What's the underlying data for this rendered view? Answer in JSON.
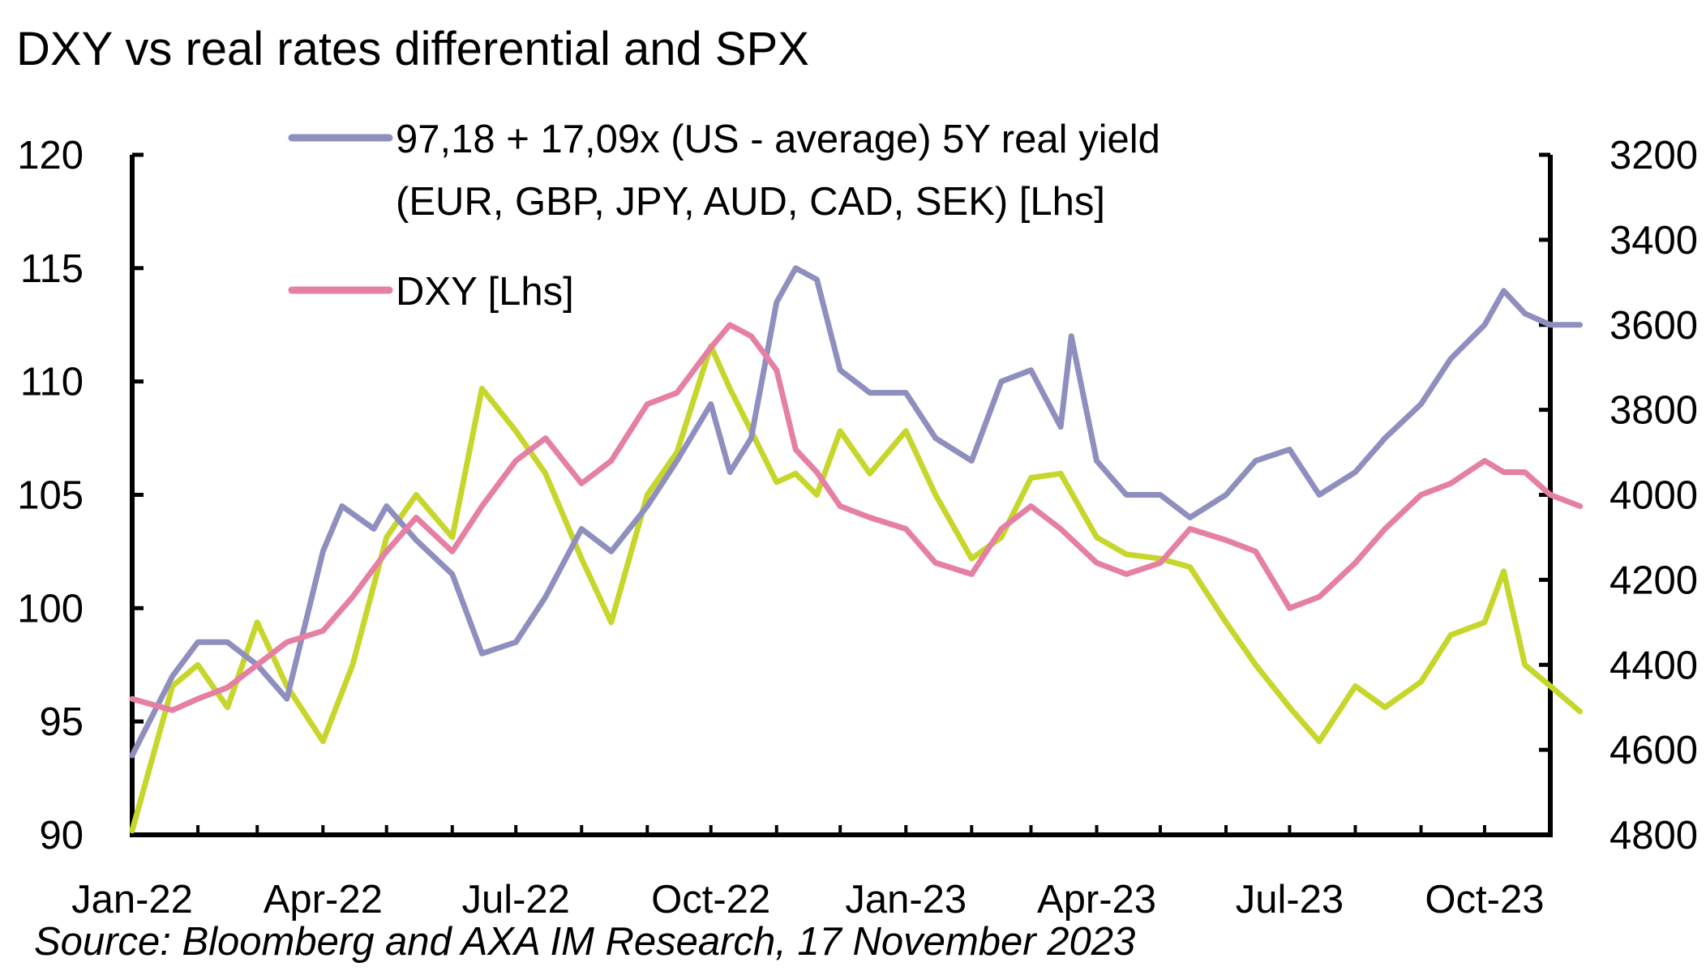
{
  "chart_data": {
    "type": "line",
    "title": "DXY vs real rates differential and SPX",
    "source": "Source: Bloomberg and AXA IM Research, 17 November 2023",
    "x_ticks": [
      "Jan-22",
      "Apr-22",
      "Jul-22",
      "Oct-22",
      "Jan-23",
      "Apr-23",
      "Jul-23",
      "Oct-23"
    ],
    "x_range": [
      "2022-01",
      "2023-11"
    ],
    "y_left": {
      "ticks": [
        "120",
        "115",
        "110",
        "105",
        "100",
        "95",
        "90"
      ],
      "min": 90,
      "max": 120
    },
    "y_right": {
      "ticks": [
        "3200",
        "3400",
        "3600",
        "3800",
        "4000",
        "4200",
        "4400",
        "4600",
        "4800"
      ],
      "min": 3200,
      "max": 4800,
      "inverted": true
    },
    "legend": [
      {
        "label_line1": "97,18 + 17,09x (US - average) 5Y real yield",
        "label_line2": "(EUR, GBP, JPY, AUD, CAD, SEK) [Lhs]",
        "color": "#8f8fbf"
      },
      {
        "label_line1": "DXY [Lhs]",
        "color": "#e57fa3"
      }
    ],
    "series": [
      {
        "name": "97,18 + 17,09x (US - average) 5Y real yield (EUR, GBP, JPY, AUD, CAD, SEK) [Lhs]",
        "axis": "left",
        "color": "#8f8fbf",
        "points": [
          [
            "2022-01",
            93.5
          ],
          [
            "2022-01-20",
            97.0
          ],
          [
            "2022-02",
            98.5
          ],
          [
            "2022-02-15",
            98.5
          ],
          [
            "2022-03",
            97.5
          ],
          [
            "2022-03-15",
            96.0
          ],
          [
            "2022-04",
            102.5
          ],
          [
            "2022-04-10",
            104.5
          ],
          [
            "2022-04-25",
            103.5
          ],
          [
            "2022-05",
            104.5
          ],
          [
            "2022-05-15",
            103.0
          ],
          [
            "2022-06",
            101.5
          ],
          [
            "2022-06-15",
            98.0
          ],
          [
            "2022-07",
            98.5
          ],
          [
            "2022-07-15",
            100.5
          ],
          [
            "2022-08",
            103.5
          ],
          [
            "2022-08-15",
            102.5
          ],
          [
            "2022-09",
            104.5
          ],
          [
            "2022-09-15",
            106.5
          ],
          [
            "2022-10",
            109.0
          ],
          [
            "2022-10-10",
            106.0
          ],
          [
            "2022-10-20",
            107.5
          ],
          [
            "2022-11",
            113.5
          ],
          [
            "2022-11-10",
            115.0
          ],
          [
            "2022-11-20",
            114.5
          ],
          [
            "2022-12",
            110.5
          ],
          [
            "2022-12-15",
            109.5
          ],
          [
            "2023-01",
            109.5
          ],
          [
            "2023-01-15",
            107.5
          ],
          [
            "2023-02",
            106.5
          ],
          [
            "2023-02-15",
            110.0
          ],
          [
            "2023-03",
            110.5
          ],
          [
            "2023-03-15",
            108.0
          ],
          [
            "2023-03-20",
            112.0
          ],
          [
            "2023-04",
            106.5
          ],
          [
            "2023-04-15",
            105.0
          ],
          [
            "2023-05",
            105.0
          ],
          [
            "2023-05-15",
            104.0
          ],
          [
            "2023-06",
            105.0
          ],
          [
            "2023-06-15",
            106.5
          ],
          [
            "2023-07",
            107.0
          ],
          [
            "2023-07-15",
            105.0
          ],
          [
            "2023-08",
            106.0
          ],
          [
            "2023-08-15",
            107.5
          ],
          [
            "2023-09",
            109.0
          ],
          [
            "2023-09-15",
            111.0
          ],
          [
            "2023-10",
            112.5
          ],
          [
            "2023-10-10",
            114.0
          ],
          [
            "2023-10-20",
            113.0
          ],
          [
            "2023-11",
            112.5
          ],
          [
            "2023-11-15",
            112.5
          ]
        ]
      },
      {
        "name": "DXY [Lhs]",
        "axis": "left",
        "color": "#e57fa3",
        "points": [
          [
            "2022-01",
            96.0
          ],
          [
            "2022-01-20",
            95.5
          ],
          [
            "2022-02",
            96.0
          ],
          [
            "2022-02-15",
            96.5
          ],
          [
            "2022-03",
            97.5
          ],
          [
            "2022-03-15",
            98.5
          ],
          [
            "2022-04",
            99.0
          ],
          [
            "2022-04-15",
            100.5
          ],
          [
            "2022-05",
            102.5
          ],
          [
            "2022-05-15",
            104.0
          ],
          [
            "2022-06",
            102.5
          ],
          [
            "2022-06-15",
            104.5
          ],
          [
            "2022-07",
            106.5
          ],
          [
            "2022-07-15",
            107.5
          ],
          [
            "2022-08",
            105.5
          ],
          [
            "2022-08-15",
            106.5
          ],
          [
            "2022-09",
            109.0
          ],
          [
            "2022-09-15",
            109.5
          ],
          [
            "2022-10",
            111.5
          ],
          [
            "2022-10-10",
            112.5
          ],
          [
            "2022-10-20",
            112.0
          ],
          [
            "2022-11",
            110.5
          ],
          [
            "2022-11-10",
            107.0
          ],
          [
            "2022-11-20",
            106.0
          ],
          [
            "2022-12",
            104.5
          ],
          [
            "2022-12-15",
            104.0
          ],
          [
            "2023-01",
            103.5
          ],
          [
            "2023-01-15",
            102.0
          ],
          [
            "2023-02",
            101.5
          ],
          [
            "2023-02-15",
            103.5
          ],
          [
            "2023-03",
            104.5
          ],
          [
            "2023-03-15",
            103.5
          ],
          [
            "2023-04",
            102.0
          ],
          [
            "2023-04-15",
            101.5
          ],
          [
            "2023-05",
            102.0
          ],
          [
            "2023-05-15",
            103.5
          ],
          [
            "2023-06",
            103.0
          ],
          [
            "2023-06-15",
            102.5
          ],
          [
            "2023-07",
            100.0
          ],
          [
            "2023-07-15",
            100.5
          ],
          [
            "2023-08",
            102.0
          ],
          [
            "2023-08-15",
            103.5
          ],
          [
            "2023-09",
            105.0
          ],
          [
            "2023-09-15",
            105.5
          ],
          [
            "2023-10",
            106.5
          ],
          [
            "2023-10-10",
            106.0
          ],
          [
            "2023-10-20",
            106.0
          ],
          [
            "2023-11",
            105.0
          ],
          [
            "2023-11-15",
            104.5
          ]
        ]
      },
      {
        "name": "SPX",
        "axis": "right",
        "color": "#c7d62b",
        "points": [
          [
            "2022-01",
            4790
          ],
          [
            "2022-01-20",
            4450
          ],
          [
            "2022-02",
            4400
          ],
          [
            "2022-02-15",
            4500
          ],
          [
            "2022-03",
            4300
          ],
          [
            "2022-03-15",
            4450
          ],
          [
            "2022-04",
            4580
          ],
          [
            "2022-04-15",
            4400
          ],
          [
            "2022-05",
            4100
          ],
          [
            "2022-05-15",
            4000
          ],
          [
            "2022-06",
            4100
          ],
          [
            "2022-06-15",
            3750
          ],
          [
            "2022-07",
            3850
          ],
          [
            "2022-07-15",
            3950
          ],
          [
            "2022-08",
            4150
          ],
          [
            "2022-08-15",
            4300
          ],
          [
            "2022-09",
            4000
          ],
          [
            "2022-09-15",
            3900
          ],
          [
            "2022-10",
            3650
          ],
          [
            "2022-10-10",
            3750
          ],
          [
            "2022-10-20",
            3850
          ],
          [
            "2022-11",
            3970
          ],
          [
            "2022-11-10",
            3950
          ],
          [
            "2022-11-20",
            4000
          ],
          [
            "2022-12",
            3850
          ],
          [
            "2022-12-15",
            3950
          ],
          [
            "2023-01",
            3850
          ],
          [
            "2023-01-15",
            4000
          ],
          [
            "2023-02",
            4150
          ],
          [
            "2023-02-15",
            4100
          ],
          [
            "2023-03",
            3960
          ],
          [
            "2023-03-15",
            3950
          ],
          [
            "2023-04",
            4100
          ],
          [
            "2023-04-15",
            4140
          ],
          [
            "2023-05",
            4150
          ],
          [
            "2023-05-15",
            4170
          ],
          [
            "2023-06",
            4300
          ],
          [
            "2023-06-15",
            4400
          ],
          [
            "2023-07",
            4500
          ],
          [
            "2023-07-15",
            4580
          ],
          [
            "2023-08",
            4450
          ],
          [
            "2023-08-15",
            4500
          ],
          [
            "2023-09",
            4440
          ],
          [
            "2023-09-15",
            4330
          ],
          [
            "2023-10",
            4300
          ],
          [
            "2023-10-10",
            4180
          ],
          [
            "2023-10-20",
            4400
          ],
          [
            "2023-11",
            4450
          ],
          [
            "2023-11-15",
            4510
          ]
        ]
      }
    ]
  }
}
